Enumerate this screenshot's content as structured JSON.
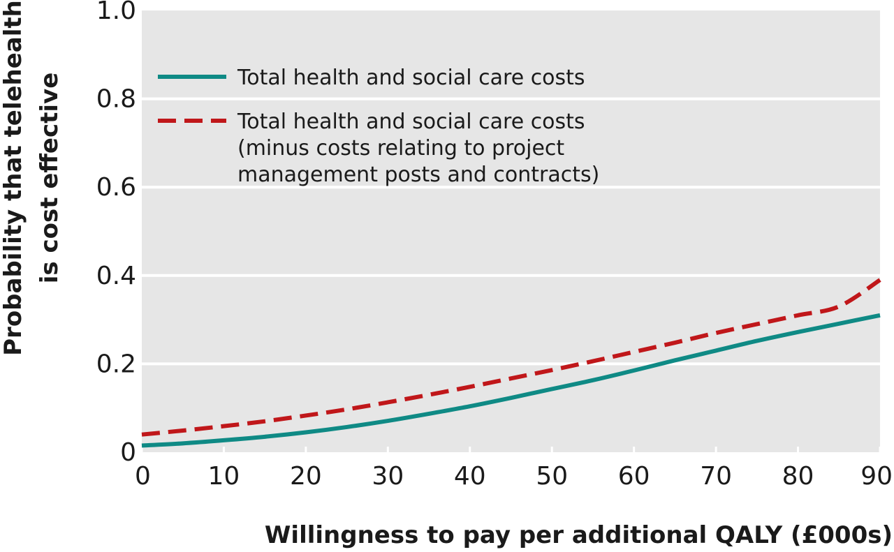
{
  "chart_data": {
    "type": "line",
    "xlabel": "Willingness to pay per additional QALY (£000s)",
    "ylabel": [
      "Probability that telehealth",
      "is cost effective"
    ],
    "xlim": [
      0,
      90
    ],
    "ylim": [
      0,
      1.0
    ],
    "x_ticks": [
      0,
      10,
      20,
      30,
      40,
      50,
      60,
      70,
      80,
      90
    ],
    "x_tick_labels": [
      "0",
      "10",
      "20",
      "30",
      "40",
      "50",
      "60",
      "70",
      "80",
      "90"
    ],
    "y_ticks": [
      0,
      0.2,
      0.4,
      0.6,
      0.8,
      1.0
    ],
    "y_tick_labels": [
      "0",
      "0.2",
      "0.4",
      "0.6",
      "0.8",
      "1.0"
    ],
    "grid": "horizontal",
    "legend_position": "top-left",
    "x": [
      0,
      5,
      10,
      15,
      20,
      25,
      30,
      35,
      40,
      45,
      50,
      55,
      60,
      65,
      70,
      75,
      80,
      85,
      90
    ],
    "series": [
      {
        "name": "Total health and social care costs",
        "color": "#0f8a85",
        "style": "solid",
        "values": [
          0.015,
          0.02,
          0.027,
          0.035,
          0.045,
          0.057,
          0.071,
          0.087,
          0.104,
          0.123,
          0.143,
          0.163,
          0.185,
          0.208,
          0.23,
          0.252,
          0.272,
          0.291,
          0.31
        ]
      },
      {
        "name": "Total health and social care costs (minus costs relating to project management posts and contracts)",
        "color": "#c0171a",
        "style": "dashed",
        "values": [
          0.04,
          0.049,
          0.059,
          0.07,
          0.083,
          0.097,
          0.113,
          0.13,
          0.148,
          0.167,
          0.186,
          0.206,
          0.227,
          0.248,
          0.27,
          0.29,
          0.31,
          0.33,
          0.39
        ]
      }
    ],
    "legend": [
      {
        "lines": [
          "Total health and social care costs"
        ]
      },
      {
        "lines": [
          "Total health and social care costs",
          "(minus costs relating to project",
          "management posts and contracts)"
        ]
      }
    ],
    "plot_background": "#e6e6e6",
    "grid_color": "#ffffff"
  }
}
